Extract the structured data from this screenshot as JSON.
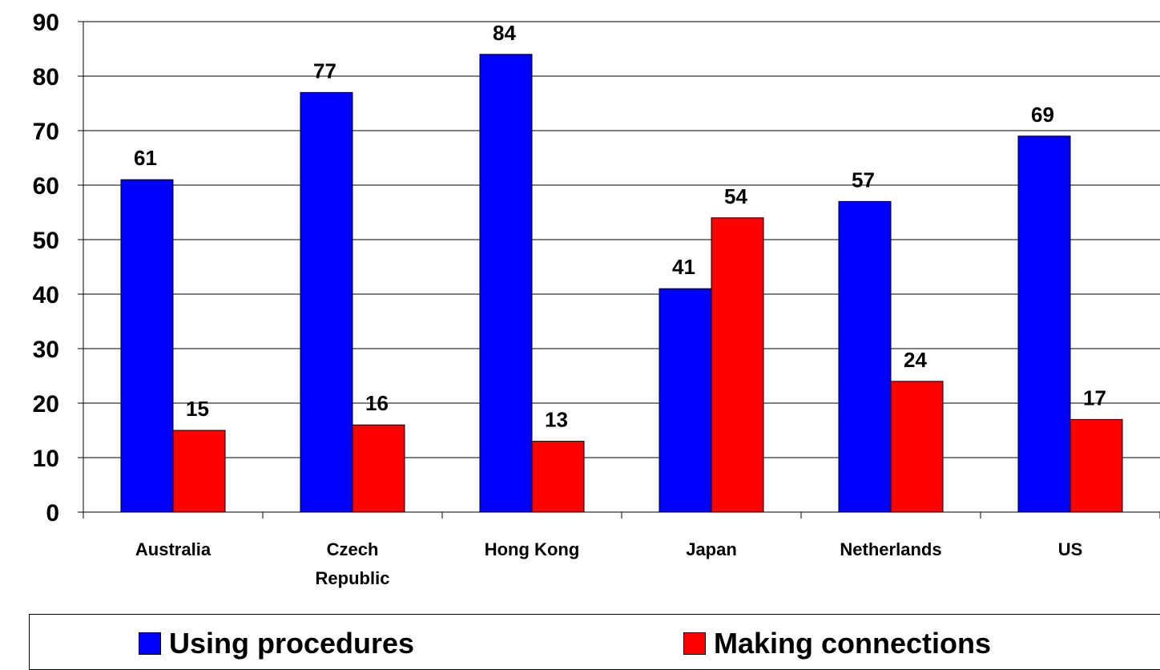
{
  "chart_data": {
    "type": "bar",
    "title": "",
    "xlabel": "",
    "ylabel": "",
    "ylim": [
      0,
      90
    ],
    "yticks": [
      0,
      10,
      20,
      30,
      40,
      50,
      60,
      70,
      80,
      90
    ],
    "grid": true,
    "legend_position": "bottom",
    "categories": [
      [
        "Australia"
      ],
      [
        "Czech",
        "Republic"
      ],
      [
        "Hong Kong"
      ],
      [
        "Japan"
      ],
      [
        "Netherlands"
      ],
      [
        "US"
      ]
    ],
    "series": [
      {
        "name": "Using procedures",
        "color": "#0000ff",
        "values": [
          61,
          77,
          84,
          41,
          57,
          69
        ]
      },
      {
        "name": "Making connections",
        "color": "#ff0000",
        "values": [
          15,
          16,
          13,
          54,
          24,
          17
        ]
      }
    ]
  }
}
